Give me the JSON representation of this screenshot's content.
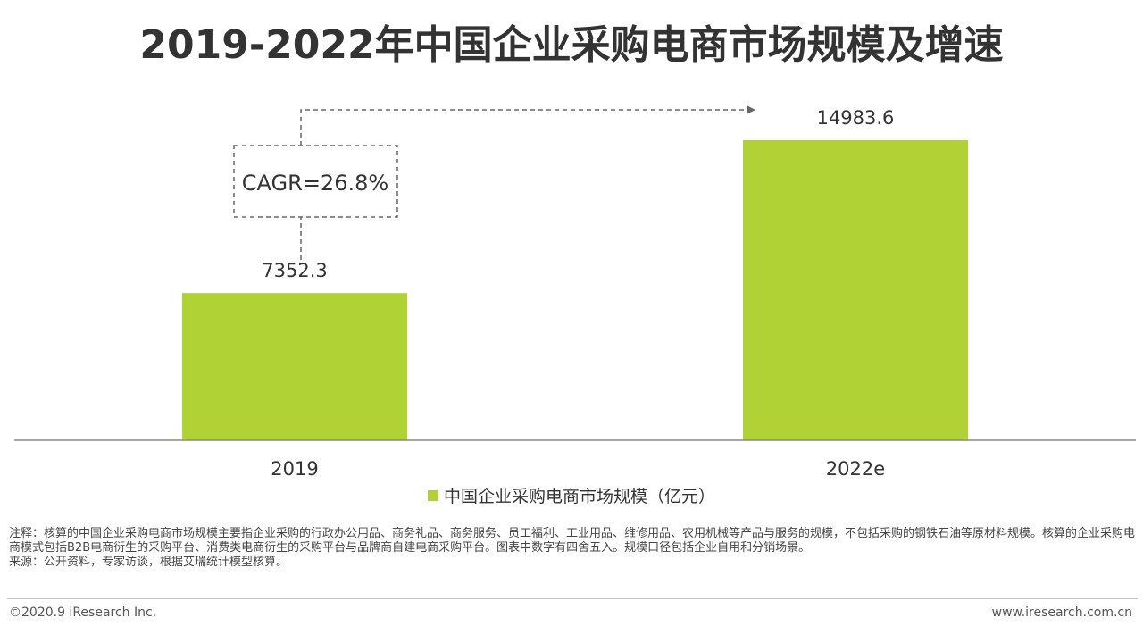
{
  "colors": {
    "bar": "#b1d235",
    "axis": "#888888",
    "dash": "#666666",
    "text": "#333333"
  },
  "chart_data": {
    "type": "bar",
    "title": "2019-2022年中国企业采购电商市场规模及增速",
    "categories": [
      "2019",
      "2022e"
    ],
    "series": [
      {
        "name": "中国企业采购电商市场规模（亿元）",
        "values": [
          7352.3,
          14983.6
        ],
        "value_labels": [
          "7352.3",
          "14983.6"
        ]
      }
    ],
    "ylim": [
      0,
      16500
    ],
    "grid": false,
    "legend": "bottom-center",
    "annotation": "CAGR=26.8%"
  },
  "notes": {
    "note": "注释：核算的中国企业采购电商市场规模主要指企业采购的行政办公用品、商务礼品、商务服务、员工福利、工业用品、维修用品、农用机械等产品与服务的规模，不包括采购的钢铁石油等原材料规模。核算的企业采购电商模式包括B2B电商衍生的采购平台、消费类电商衍生的采购平台与品牌商自建电商采购平台。图表中数字有四舍五入。规模口径包括企业自用和分销场景。",
    "source": "来源：公开资料，专家访谈，根据艾瑞统计模型核算。"
  },
  "footer": {
    "copyright": "©2020.9 iResearch Inc.",
    "website": "www.iresearch.com.cn"
  }
}
